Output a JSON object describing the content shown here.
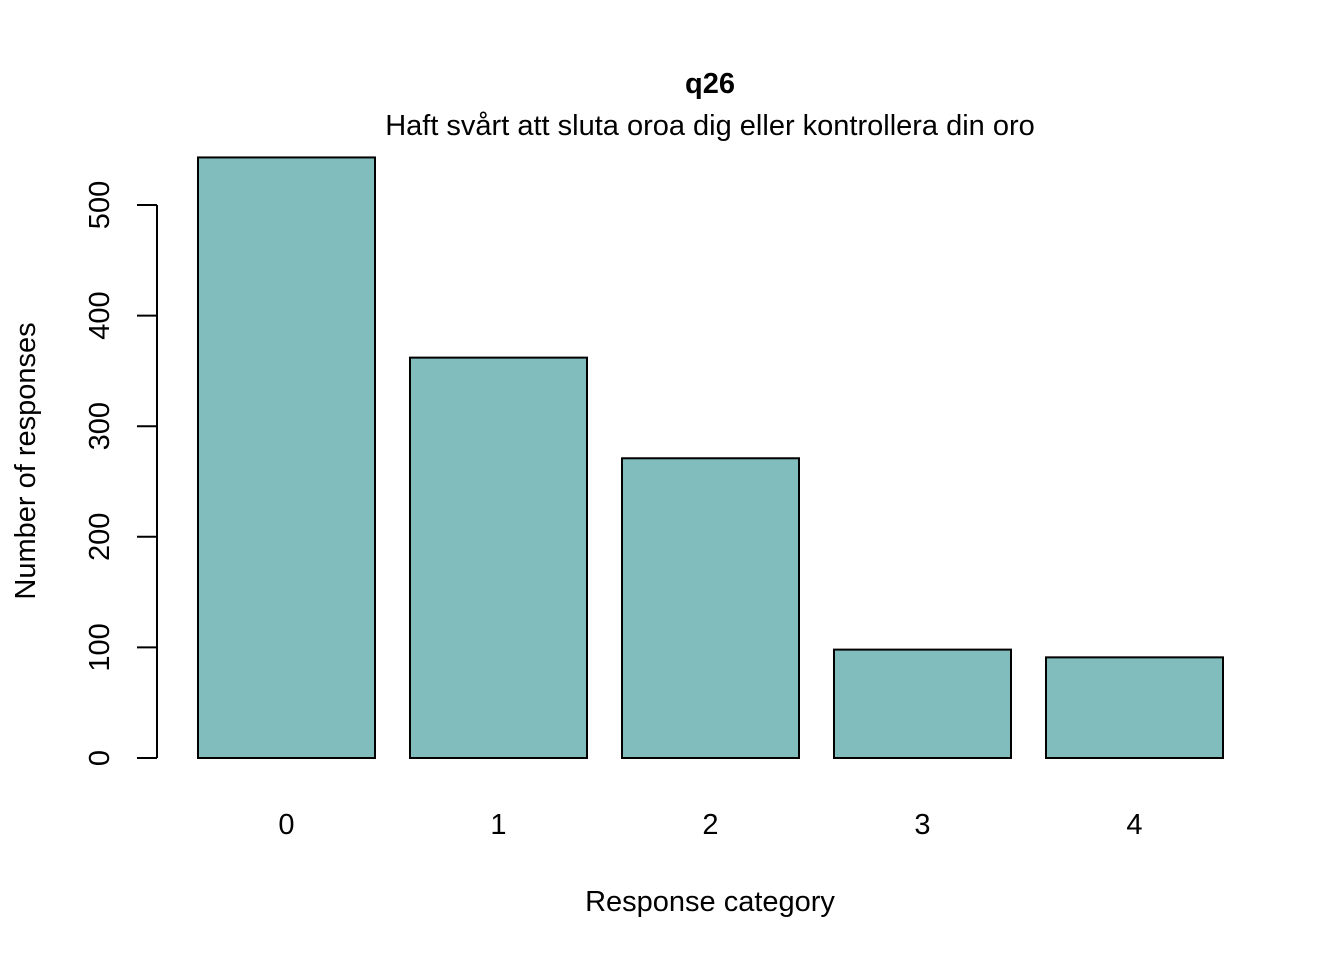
{
  "chart_data": {
    "type": "bar",
    "title": "q26",
    "subtitle": "Haft svårt att sluta oroa dig eller kontrollera din oro",
    "xlabel": "Response category",
    "ylabel": "Number of responses",
    "categories": [
      "0",
      "1",
      "2",
      "3",
      "4"
    ],
    "values": [
      543,
      362,
      271,
      98,
      91
    ],
    "ylim": [
      0,
      500
    ],
    "yticks": [
      0,
      100,
      200,
      300,
      400,
      500
    ],
    "bar_color": "#80BDBC",
    "grid": false,
    "legend": "none"
  }
}
